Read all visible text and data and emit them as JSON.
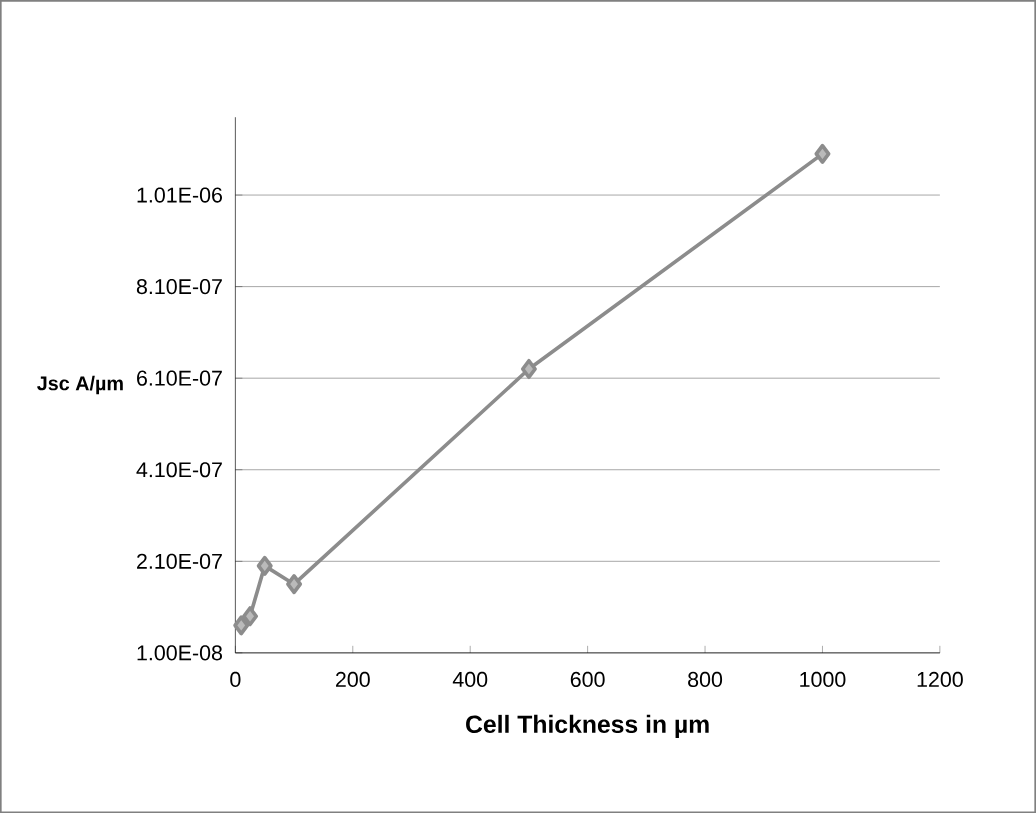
{
  "chart_data": {
    "type": "line",
    "xlabel": "Cell Thickness in µm",
    "ylabel": "Jsc A/µm",
    "x": [
      10,
      25,
      50,
      100,
      500,
      1000
    ],
    "series": [
      {
        "color": "#8c8c8c",
        "values": [
          7e-08,
          9e-08,
          2e-07,
          1.6e-07,
          6.3e-07,
          1.1e-06
        ]
      }
    ],
    "xlim": [
      0,
      1200
    ],
    "xticks": [
      0,
      200,
      400,
      600,
      800,
      1000,
      1200
    ],
    "ylim": [
      1e-08,
      1.18e-06
    ],
    "yticks": [
      {
        "value": 1e-08,
        "label": "1.00E-08"
      },
      {
        "value": 2.1e-07,
        "label": "2.10E-07"
      },
      {
        "value": 4.1e-07,
        "label": "4.10E-07"
      },
      {
        "value": 6.1e-07,
        "label": "6.10E-07"
      },
      {
        "value": 8.1e-07,
        "label": "8.10E-07"
      },
      {
        "value": 1.01e-06,
        "label": "1.01E-06"
      }
    ],
    "grid": "y",
    "marker": "diamond",
    "line_style": "solid"
  }
}
